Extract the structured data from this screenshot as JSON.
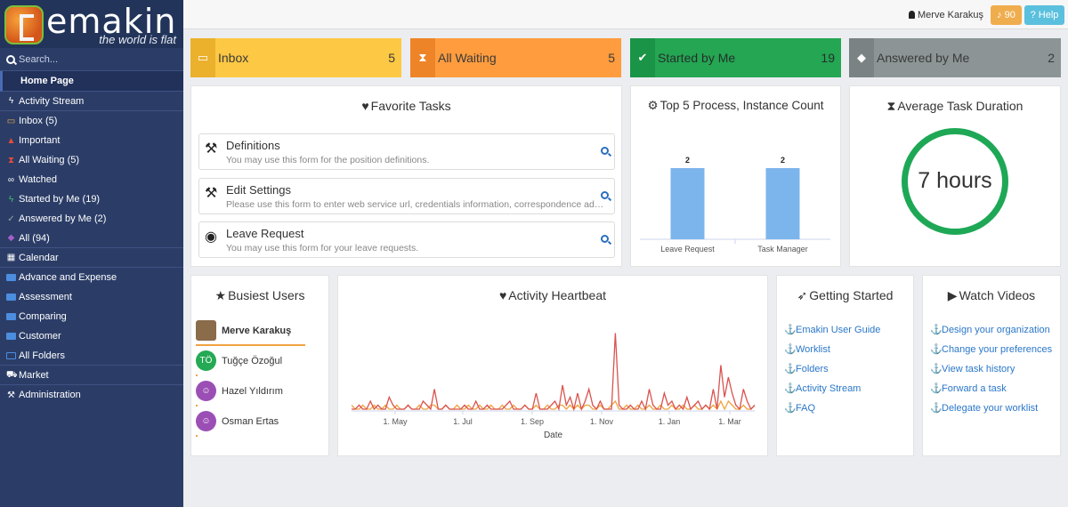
{
  "brand": {
    "name": "emakin",
    "tagline": "the world is flat"
  },
  "search": {
    "placeholder": "Search..."
  },
  "sidebar": {
    "items": [
      {
        "label": "Home Page",
        "icon": "home"
      },
      {
        "label": "Activity Stream",
        "icon": "bolt-icon"
      },
      {
        "label": "Inbox (5)",
        "icon": "inbox-icon"
      },
      {
        "label": "Important",
        "icon": "warning-icon"
      },
      {
        "label": "All Waiting (5)",
        "icon": "hourglass-icon"
      },
      {
        "label": "Watched",
        "icon": "binoculars-icon"
      },
      {
        "label": "Started by Me (19)",
        "icon": "bolt-icon"
      },
      {
        "label": "Answered by Me (2)",
        "icon": "check-icon"
      },
      {
        "label": "All (94)",
        "icon": "tag-icon"
      },
      {
        "label": "Calendar",
        "icon": "calendar-icon"
      },
      {
        "label": "Advance and Expense",
        "icon": "folder-icon"
      },
      {
        "label": "Assessment",
        "icon": "folder-icon"
      },
      {
        "label": "Comparing",
        "icon": "folder-icon"
      },
      {
        "label": "Customer",
        "icon": "folder-icon"
      },
      {
        "label": "All Folders",
        "icon": "folder-open-icon"
      },
      {
        "label": "Market",
        "icon": "cart-icon"
      },
      {
        "label": "Administration",
        "icon": "wrench-icon"
      }
    ]
  },
  "header": {
    "user": "Merve Karakuş",
    "notifications": "90",
    "help": "Help"
  },
  "tiles": [
    {
      "label": "Inbox",
      "count": "5"
    },
    {
      "label": "All Waiting",
      "count": "5"
    },
    {
      "label": "Started by Me",
      "count": "19"
    },
    {
      "label": "Answered by Me",
      "count": "2"
    }
  ],
  "favorites": {
    "title": "Favorite Tasks",
    "items": [
      {
        "title": "Definitions",
        "desc": "You may use this form for the position definitions."
      },
      {
        "title": "Edit Settings",
        "desc": "Please use this form to enter web service url, credentials information, correspondence addresses and other settings."
      },
      {
        "title": "Leave Request",
        "desc": "You may use this form for your leave requests."
      }
    ]
  },
  "top_process": {
    "title": "Top 5 Process, Instance Count",
    "chart_data": {
      "type": "bar",
      "categories": [
        "Leave Request",
        "Task Manager"
      ],
      "values": [
        2,
        2
      ],
      "ylim": [
        0,
        2.4
      ],
      "color": "#7cb5ec"
    }
  },
  "avg_duration": {
    "title": "Average Task Duration",
    "value": "7 hours"
  },
  "busiest": {
    "title": "Busiest Users",
    "users": [
      {
        "name": "Merve Karakuş",
        "initials": "",
        "color": "#8a6b4a",
        "share": 1.0
      },
      {
        "name": "Tuğçe Özoğul",
        "initials": "TÖ",
        "color": "#25a954",
        "share": 0.02
      },
      {
        "name": "Hazel Yıldırım",
        "initials": "",
        "color": "#9b4fb5",
        "share": 0.02
      },
      {
        "name": "Osman Ertas",
        "initials": "",
        "color": "#9b4fb5",
        "share": 0.02
      }
    ]
  },
  "heartbeat": {
    "title": "Activity Heartbeat",
    "chart_data": {
      "type": "line",
      "xlabel": "Date",
      "xticks": [
        "1. May",
        "1. Jul",
        "1. Sep",
        "1. Nov",
        "1. Jan",
        "1. Mar"
      ],
      "series": [
        {
          "color": "#d9534f",
          "values": [
            0,
            0,
            1,
            0,
            0,
            2,
            0,
            1,
            0,
            0,
            3,
            1,
            0,
            0,
            0,
            1,
            0,
            0,
            0,
            2,
            1,
            0,
            5,
            0,
            0,
            1,
            0,
            0,
            0,
            0,
            1,
            0,
            0,
            2,
            0,
            0,
            1,
            0,
            0,
            0,
            0,
            1,
            2,
            0,
            0,
            0,
            1,
            0,
            0,
            4,
            0,
            0,
            0,
            1,
            2,
            0,
            6,
            1,
            3,
            0,
            4,
            0,
            2,
            5,
            1,
            0,
            2,
            0,
            0,
            0,
            19,
            1,
            0,
            0,
            1,
            0,
            0,
            2,
            0,
            5,
            1,
            0,
            0,
            4,
            1,
            2,
            0,
            1,
            0,
            3,
            0,
            1,
            2,
            0,
            1,
            0,
            5,
            0,
            11,
            3,
            8,
            4,
            1,
            0,
            5,
            2,
            0,
            1
          ]
        },
        {
          "color": "#f0a340",
          "values": [
            1,
            0,
            0,
            1,
            0,
            0,
            1,
            0,
            0,
            1,
            0,
            0,
            1,
            0,
            0,
            1,
            0,
            0,
            1,
            0,
            0,
            1,
            1,
            0,
            0,
            1,
            0,
            0,
            1,
            0,
            0,
            1,
            0,
            0,
            1,
            0,
            0,
            1,
            0,
            0,
            1,
            0,
            0,
            1,
            0,
            0,
            1,
            0,
            0,
            1,
            0,
            0,
            1,
            0,
            0,
            1,
            1,
            0,
            1,
            0,
            1,
            0,
            1,
            1,
            0,
            0,
            1,
            0,
            0,
            1,
            2,
            0,
            0,
            1,
            0,
            0,
            1,
            0,
            0,
            1,
            0,
            0,
            1,
            0,
            0,
            1,
            0,
            0,
            1,
            0,
            0,
            1,
            0,
            0,
            1,
            0,
            1,
            0,
            2,
            0,
            2,
            1,
            0,
            0,
            1,
            0,
            0,
            1
          ]
        }
      ]
    }
  },
  "getting_started": {
    "title": "Getting Started",
    "links": [
      "Emakin User Guide",
      "Worklist",
      "Folders",
      "Activity Stream",
      "FAQ"
    ]
  },
  "videos": {
    "title": "Watch Videos",
    "links": [
      "Design your organization",
      "Change your preferences",
      "View task history",
      "Forward a task",
      "Delegate your worklist"
    ]
  }
}
